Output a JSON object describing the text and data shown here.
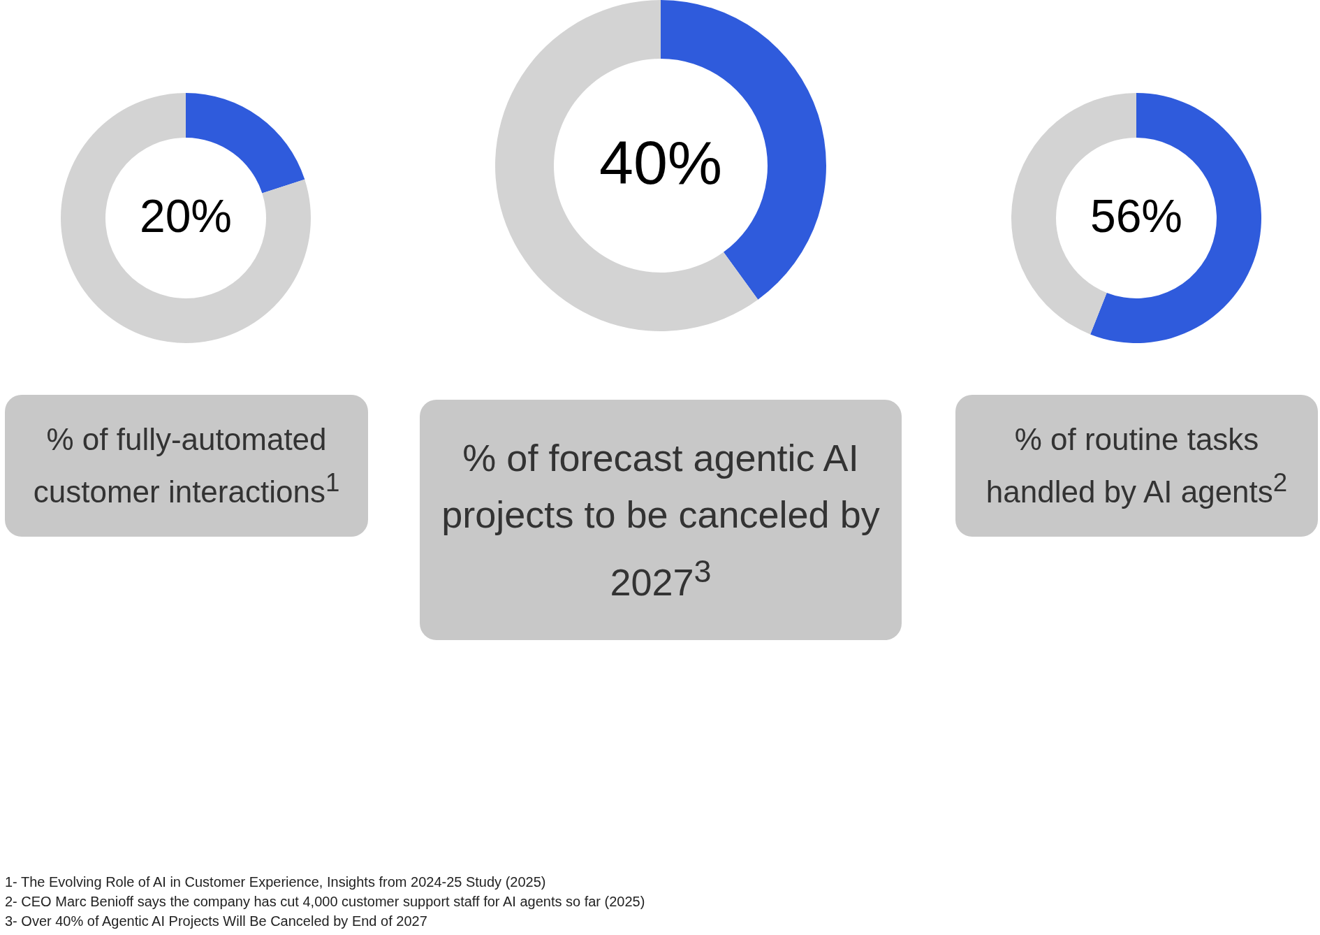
{
  "chart_data": [
    {
      "type": "donut",
      "title": "% of fully-automated customer interactions$^{1}$",
      "categories": [
        null,
        null
      ],
      "values": [
        20,
        80
      ],
      "colors": [
        "#2f5bdc",
        "#d3d3d3"
      ],
      "value_labels": [
        "20%",
        null
      ]
    },
    {
      "type": "donut",
      "title": "% of forecast agentic AI projects to be canceled by 2027$^{3}$",
      "categories": [
        null,
        null
      ],
      "values": [
        40,
        60
      ],
      "colors": [
        "#2f5bdc",
        "#d3d3d3"
      ],
      "value_labels": [
        "40%",
        null
      ]
    },
    {
      "type": "donut",
      "title": "% of routine tasks handled by AI agents$^{2}$",
      "categories": [
        null,
        null
      ],
      "values": [
        56,
        44
      ],
      "colors": [
        "#2f5bdc",
        "#d3d3d3"
      ],
      "value_labels": [
        "56%",
        null
      ]
    },
    {
      "type": "other",
      "annotations": [
        "1- The Evolving Role of AI in Customer Experience, Insights from 2024-25 Study (2025)",
        "2- CEO Marc Benioff says the company has cut 4,000 customer support staff for AI agents so far (2025)",
        "3- Over 40% of Agentic AI Projects Will Be Canceled by End of 2027"
      ]
    }
  ]
}
